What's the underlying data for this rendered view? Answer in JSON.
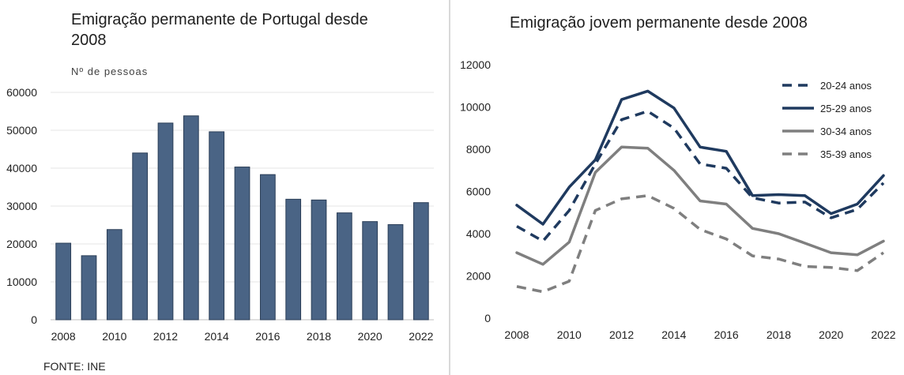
{
  "source_note": "FONTE: INE",
  "chart_data": [
    {
      "type": "bar",
      "title": "Emigração permanente de Portugal desde 2008",
      "ylabel": "Nº de pessoas",
      "xlabel": "",
      "categories": [
        2008,
        2009,
        2010,
        2011,
        2012,
        2013,
        2014,
        2015,
        2016,
        2017,
        2018,
        2019,
        2020,
        2021,
        2022
      ],
      "x_tick_labels": [
        "2008",
        "2010",
        "2012",
        "2014",
        "2016",
        "2018",
        "2020",
        "2022"
      ],
      "values": [
        20200,
        16900,
        23800,
        44000,
        51900,
        53800,
        49600,
        40300,
        38300,
        31800,
        31600,
        28200,
        25900,
        25100,
        30900
      ],
      "ylim": [
        0,
        60000
      ],
      "yticks": [
        0,
        10000,
        20000,
        30000,
        40000,
        50000,
        60000
      ],
      "grid": true,
      "color": "#4a6485",
      "edge_color": "#2b3e57"
    },
    {
      "type": "line",
      "title": "Emigração jovem permanente desde 2008",
      "xlabel": "",
      "ylabel": "",
      "x": [
        2008,
        2009,
        2010,
        2011,
        2012,
        2013,
        2014,
        2015,
        2016,
        2017,
        2018,
        2019,
        2020,
        2021,
        2022
      ],
      "x_tick_labels": [
        "2008",
        "2010",
        "2012",
        "2014",
        "2016",
        "2018",
        "2020",
        "2022"
      ],
      "ylim": [
        0,
        12000
      ],
      "yticks": [
        0,
        2000,
        4000,
        6000,
        8000,
        10000,
        12000
      ],
      "grid": false,
      "legend_position": "top-right",
      "series": [
        {
          "name": "20-24 anos",
          "color": "#1f3a5f",
          "dashed": true,
          "values": [
            4350,
            3650,
            5100,
            7300,
            9400,
            9800,
            9000,
            7300,
            7100,
            5700,
            5450,
            5500,
            4750,
            5150,
            6400
          ]
        },
        {
          "name": "25-29 anos",
          "color": "#1f3a5f",
          "dashed": false,
          "values": [
            5350,
            4450,
            6200,
            7500,
            10350,
            10750,
            9950,
            8100,
            7900,
            5800,
            5850,
            5800,
            4950,
            5400,
            6750
          ]
        },
        {
          "name": "30-34 anos",
          "color": "#7f7f7f",
          "dashed": false,
          "values": [
            3100,
            2550,
            3600,
            6900,
            8100,
            8050,
            7000,
            5550,
            5400,
            4250,
            4000,
            3550,
            3100,
            3000,
            3650
          ]
        },
        {
          "name": "35-39 anos",
          "color": "#7f7f7f",
          "dashed": true,
          "values": [
            1500,
            1250,
            1750,
            5100,
            5650,
            5800,
            5200,
            4200,
            3750,
            2950,
            2800,
            2450,
            2400,
            2250,
            3100
          ]
        }
      ]
    }
  ]
}
